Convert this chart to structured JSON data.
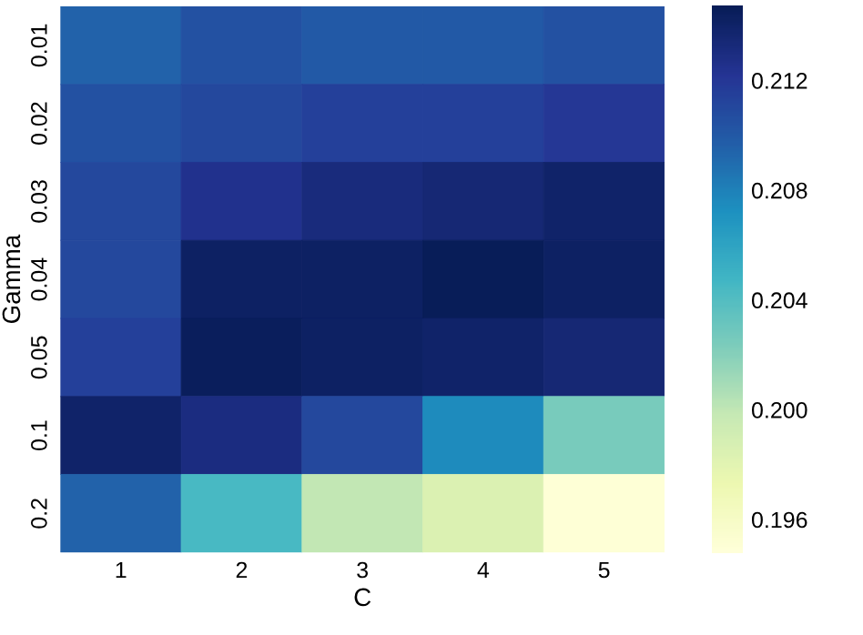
{
  "chart_data": {
    "type": "heatmap",
    "xlabel": "C",
    "ylabel": "Gamma",
    "categories": [
      "1",
      "2",
      "3",
      "4",
      "5"
    ],
    "y_categories": [
      "0.01",
      "0.02",
      "0.03",
      "0.04",
      "0.05",
      "0.1",
      "0.2"
    ],
    "cells": [
      [
        0.2095,
        0.2105,
        0.21,
        0.21,
        0.2105
      ],
      [
        0.2105,
        0.211,
        0.2115,
        0.2115,
        0.212
      ],
      [
        0.211,
        0.2125,
        0.2132,
        0.2135,
        0.214
      ],
      [
        0.211,
        0.2142,
        0.2142,
        0.2147,
        0.2142
      ],
      [
        0.2115,
        0.2145,
        0.2142,
        0.214,
        0.2135
      ],
      [
        0.214,
        0.213,
        0.211,
        0.2075,
        0.2025
      ],
      [
        0.2095,
        0.2045,
        0.2,
        0.1985,
        0.195
      ]
    ],
    "clim": [
      0.1948,
      0.2147
    ],
    "cticks": [
      0.196,
      {
        "value": 0.2,
        "label": "0.200"
      },
      0.204,
      0.208,
      0.212
    ]
  }
}
